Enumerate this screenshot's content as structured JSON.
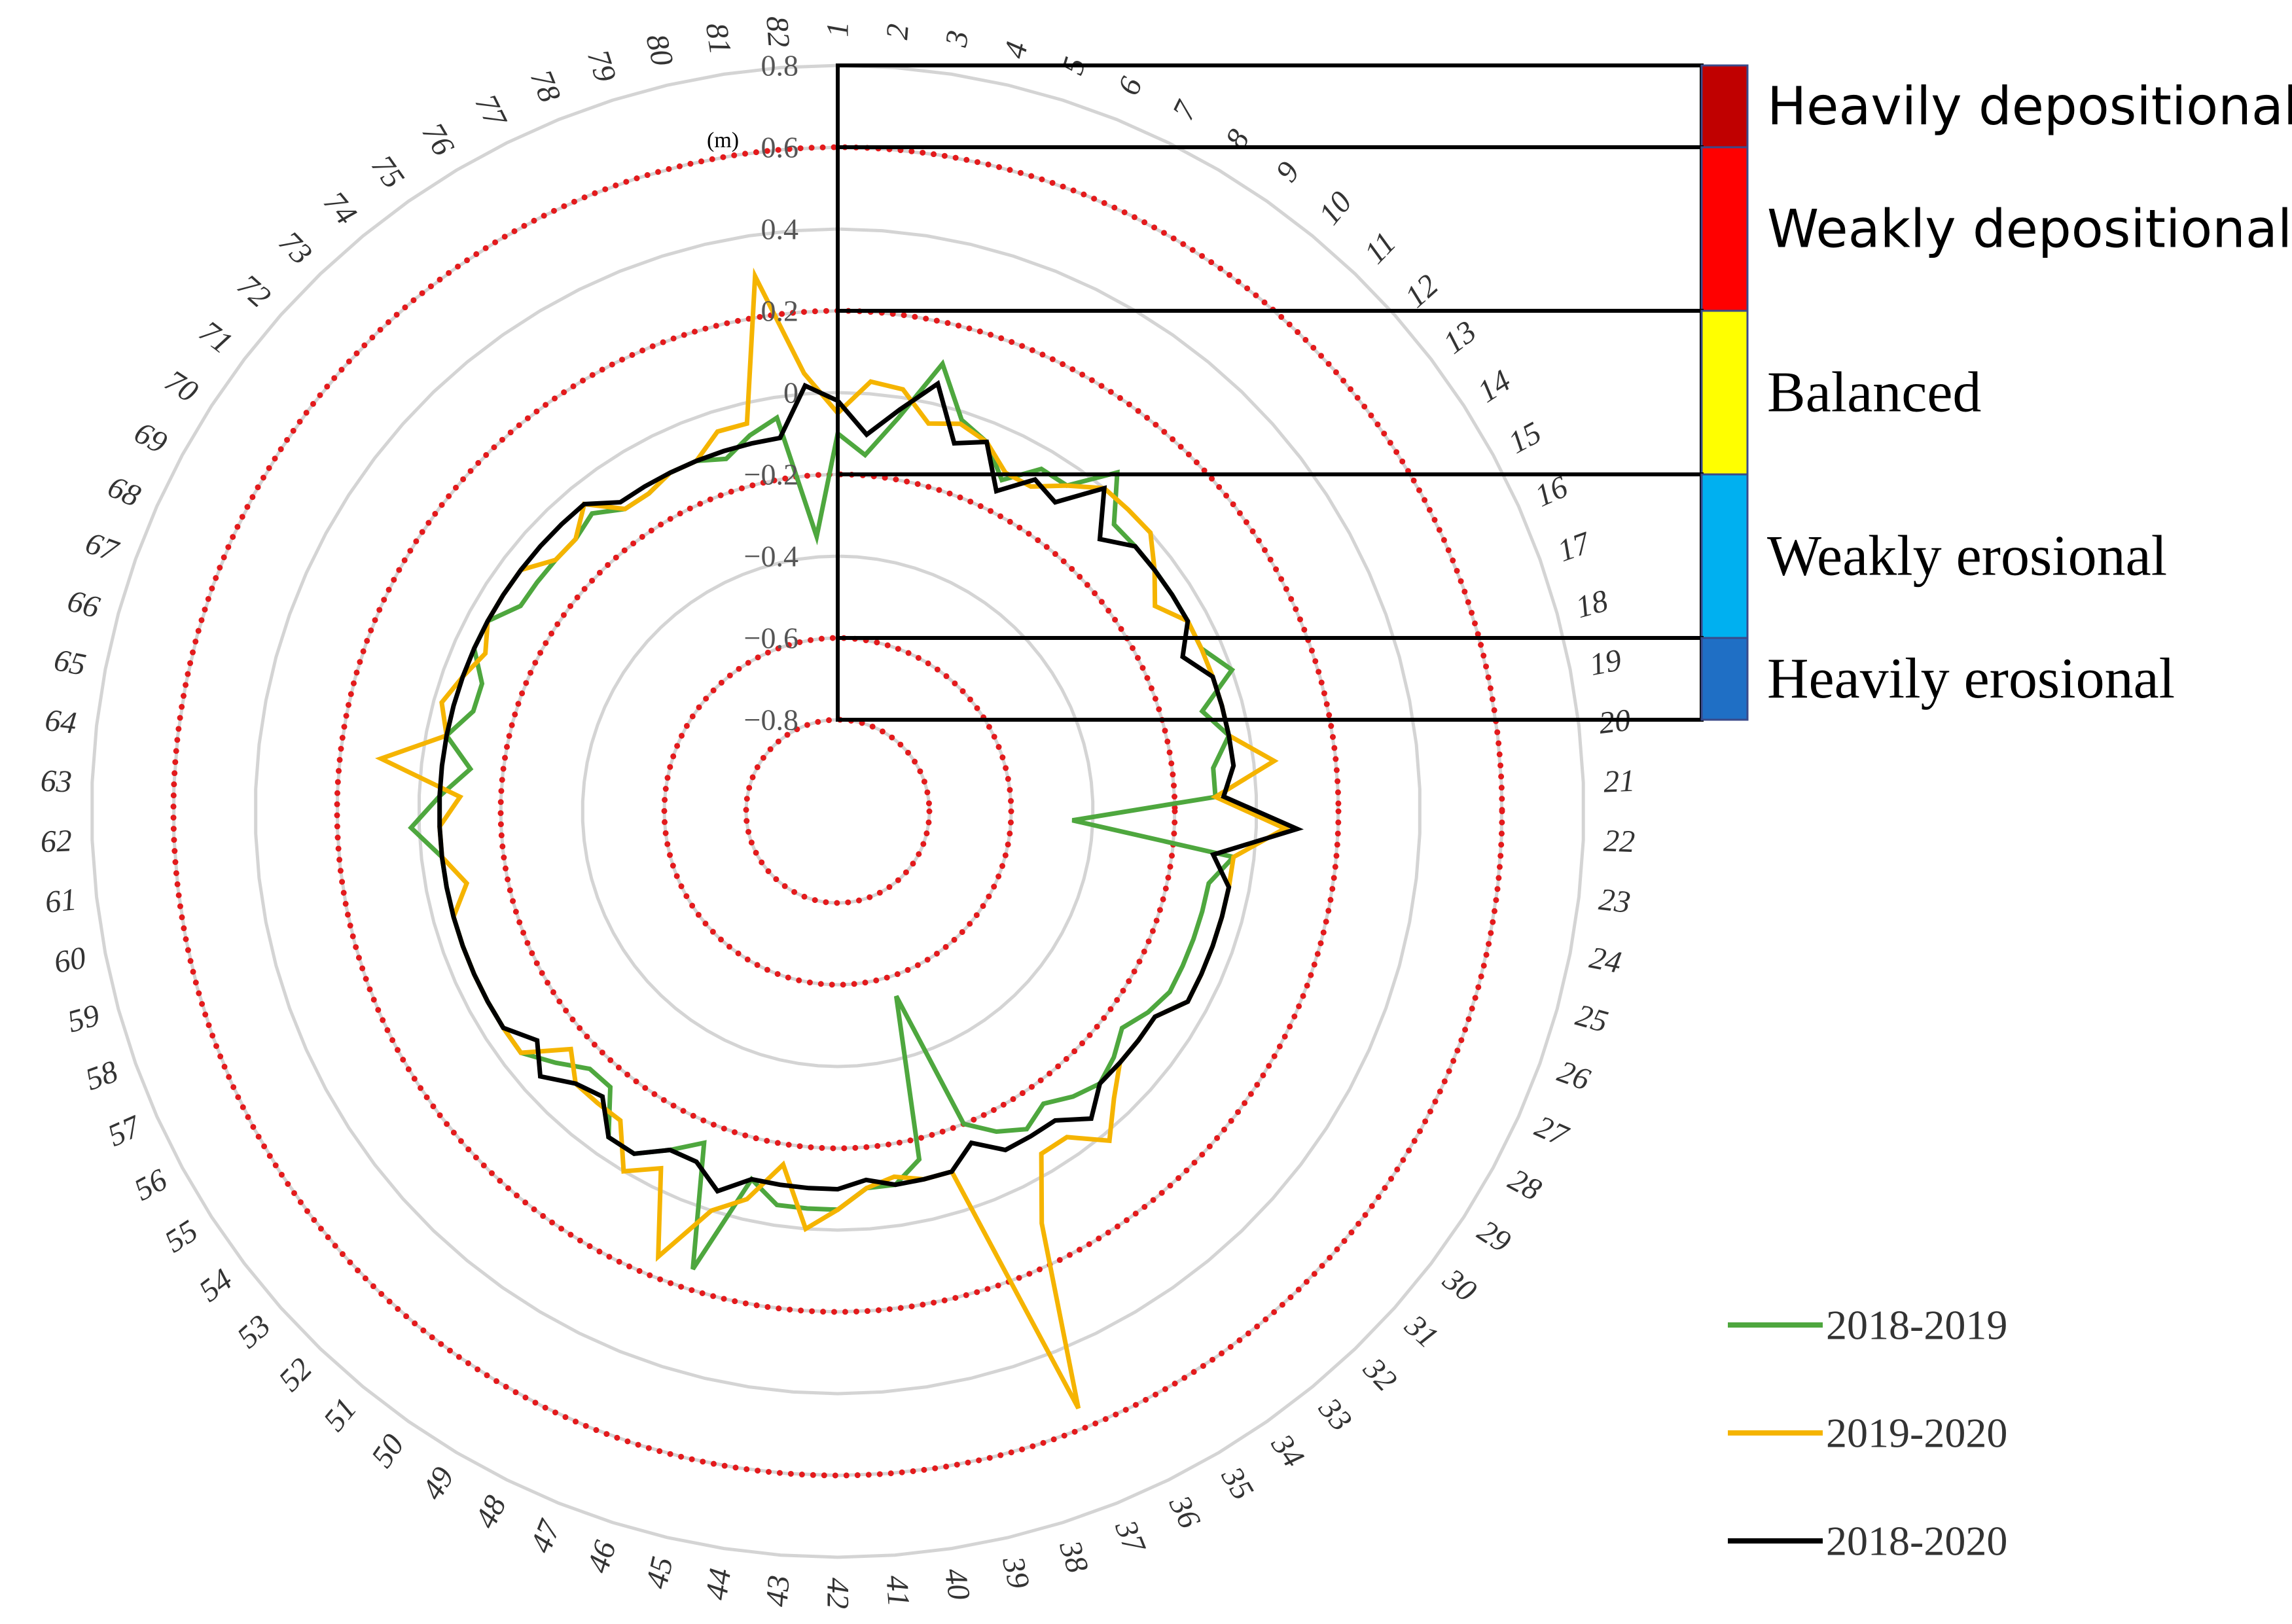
{
  "chart_data": {
    "type": "radar",
    "unit": "(m)",
    "angular_axis": {
      "labels": [
        "1",
        "2",
        "3",
        "4",
        "5",
        "6",
        "7",
        "8",
        "9",
        "10",
        "11",
        "12",
        "13",
        "14",
        "15",
        "16",
        "17",
        "18",
        "19",
        "20",
        "21",
        "22",
        "23",
        "24",
        "25",
        "26",
        "27",
        "28",
        "29",
        "30",
        "31",
        "32",
        "33",
        "34",
        "35",
        "36",
        "37",
        "38",
        "39",
        "40",
        "41",
        "42",
        "43",
        "44",
        "45",
        "46",
        "47",
        "48",
        "49",
        "50",
        "51",
        "52",
        "53",
        "54",
        "55",
        "56",
        "57",
        "58",
        "59",
        "60",
        "61",
        "62",
        "63",
        "64",
        "65",
        "66",
        "67",
        "68",
        "69",
        "70",
        "71",
        "72",
        "73",
        "74",
        "75",
        "76",
        "77",
        "78",
        "79",
        "80",
        "81",
        "82"
      ]
    },
    "radial_axis": {
      "range": [
        -0.8,
        0.8
      ],
      "ticks": [
        -0.8,
        -0.6,
        -0.4,
        -0.2,
        0,
        0.2,
        0.4,
        0.6,
        0.8
      ],
      "tick_labels": [
        "−0.8",
        "−0.6",
        "−0.4",
        "−0.2",
        "0",
        "0.2",
        "0.4",
        "0.6",
        "0.8"
      ],
      "threshold_rings": [
        -0.8,
        -0.6,
        -0.2,
        0.2,
        0.6
      ],
      "threshold_color": "#e31a1c",
      "grid_color": "#d4d4d4"
    },
    "series": [
      {
        "name": "2018-2019",
        "color": "#4ea73e",
        "values": [
          -0.1,
          -0.15,
          -0.05,
          0.1,
          -0.02,
          -0.05,
          -0.12,
          -0.05,
          -0.05,
          0.05,
          -0.05,
          -0.05,
          -0.05,
          -0.05,
          -0.05,
          -0.05,
          0,
          -0.1,
          -0.05,
          -0.1,
          -0.1,
          -0.45,
          -0.05,
          -0.1,
          -0.1,
          -0.1,
          -0.1,
          -0.1,
          -0.12,
          -0.15,
          -0.12,
          -0.1,
          -0.12,
          -0.15,
          -0.12,
          -0.15,
          -0.2,
          -0.55,
          -0.15,
          -0.1,
          -0.1,
          -0.05,
          -0.05,
          -0.05,
          -0.1,
          0.15,
          -0.15,
          -0.1,
          -0.05,
          -0.05,
          -0.15,
          -0.15,
          -0.1,
          -0.05,
          -0.05,
          -0.05,
          -0.05,
          -0.05,
          -0.05,
          -0.05,
          -0.05,
          0.02,
          -0.05,
          -0.12,
          -0.05,
          -0.1,
          -0.1,
          -0.05,
          -0.05,
          -0.1,
          -0.1,
          -0.1,
          -0.1,
          -0.08,
          -0.12,
          -0.12,
          -0.1,
          -0.1,
          -0.12,
          -0.08,
          -0.05,
          -0.35
        ]
      },
      {
        "name": "2019-2020",
        "color": "#f5b400",
        "values": [
          -0.05,
          0.03,
          0.02,
          -0.05,
          -0.03,
          -0.05,
          -0.1,
          -0.1,
          -0.05,
          0,
          0,
          0,
          -0.05,
          -0.1,
          -0.05,
          -0.05,
          -0.05,
          -0.05,
          -0.05,
          0.05,
          -0.1,
          0.07,
          -0.05,
          -0.05,
          -0.05,
          -0.05,
          -0.05,
          -0.05,
          -0.1,
          -0.1,
          -0.1,
          -0.05,
          0.02,
          -0.05,
          -0.05,
          0.1,
          0.55,
          -0.1,
          -0.1,
          -0.12,
          -0.1,
          -0.05,
          0,
          -0.15,
          -0.05,
          0,
          0.15,
          -0.05,
          0,
          -0.1,
          -0.1,
          -0.1,
          -0.15,
          -0.05,
          -0.05,
          -0.05,
          -0.05,
          -0.05,
          -0.05,
          -0.1,
          -0.05,
          -0.05,
          -0.1,
          0.1,
          -0.05,
          -0.02,
          -0.05,
          -0.08,
          -0.05,
          -0.05,
          -0.05,
          -0.1,
          -0.1,
          -0.05,
          -0.12,
          -0.12,
          -0.1,
          -0.1,
          -0.05,
          -0.05,
          0.3,
          0.05
        ]
      },
      {
        "name": "2018-2020",
        "color": "#000000",
        "values": [
          -0.02,
          -0.1,
          -0.03,
          0.05,
          -0.08,
          -0.05,
          -0.15,
          -0.08,
          -0.1,
          0,
          -0.1,
          -0.05,
          -0.05,
          -0.05,
          -0.05,
          -0.1,
          -0.05,
          -0.05,
          -0.05,
          -0.05,
          -0.08,
          0.1,
          -0.1,
          -0.05,
          -0.05,
          -0.05,
          -0.05,
          -0.05,
          -0.1,
          -0.1,
          -0.1,
          -0.1,
          -0.05,
          -0.1,
          -0.1,
          -0.1,
          -0.15,
          -0.1,
          -0.1,
          -0.1,
          -0.12,
          -0.1,
          -0.1,
          -0.1,
          -0.1,
          -0.05,
          -0.1,
          -0.1,
          -0.05,
          -0.05,
          -0.12,
          -0.1,
          -0.05,
          -0.1,
          -0.05,
          -0.05,
          -0.05,
          -0.05,
          -0.05,
          -0.05,
          -0.05,
          -0.05,
          -0.05,
          -0.05,
          -0.05,
          -0.05,
          -0.05,
          -0.05,
          -0.05,
          -0.05,
          -0.05,
          -0.05,
          -0.05,
          -0.05,
          -0.1,
          -0.1,
          -0.1,
          -0.1,
          -0.1,
          -0.1,
          -0.1,
          0.02
        ]
      }
    ],
    "classes": [
      {
        "label": "Heavily depositional",
        "color": "#c00000",
        "range": [
          0.6,
          0.8
        ]
      },
      {
        "label": "Weakly depositional",
        "color": "#ff0000",
        "range": [
          0.2,
          0.6
        ]
      },
      {
        "label": "Balanced",
        "color": "#ffff00",
        "range": [
          -0.2,
          0.2
        ]
      },
      {
        "label": "Weakly erosional",
        "color": "#00b0f0",
        "range": [
          -0.6,
          -0.2
        ]
      },
      {
        "label": "Heavily erosional",
        "color": "#1f6fc5",
        "range": [
          -0.8,
          -0.6
        ]
      }
    ],
    "legend": {
      "position": "bottom-right",
      "entries": [
        "2018-2019",
        "2019-2020",
        "2018-2020"
      ]
    }
  }
}
